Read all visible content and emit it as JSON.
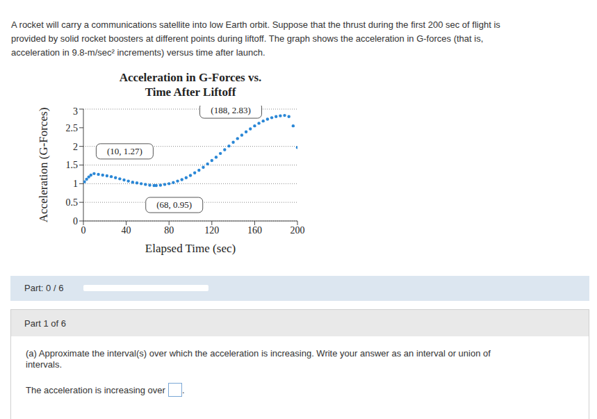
{
  "problem": {
    "lines": [
      "A rocket will carry a communications satellite into low Earth orbit. Suppose that the thrust during the first 200 sec of flight is",
      "provided by solid rocket boosters at different points during liftoff. The graph shows the acceleration in G-forces (that is,",
      "acceleration in 9.8-m/sec² increments) versus time after launch."
    ]
  },
  "chart_data": {
    "type": "scatter",
    "title": [
      "Acceleration in G-Forces vs.",
      "Time After Liftoff"
    ],
    "x_label": "Elapsed Time (sec)",
    "y_label": "Acceleration (G-Forces)",
    "x": [
      1,
      3,
      5,
      7,
      10,
      14,
      18,
      22,
      26,
      30,
      34,
      38,
      42,
      46,
      50,
      54,
      58,
      62,
      66,
      68,
      72,
      76,
      80,
      84,
      88,
      92,
      96,
      100,
      104,
      108,
      112,
      116,
      120,
      124,
      128,
      132,
      136,
      140,
      144,
      148,
      152,
      156,
      160,
      164,
      168,
      172,
      176,
      180,
      184,
      188,
      192,
      196,
      200
    ],
    "values": [
      1.05,
      1.12,
      1.18,
      1.23,
      1.27,
      1.25,
      1.23,
      1.21,
      1.19,
      1.16,
      1.13,
      1.1,
      1.07,
      1.04,
      1.02,
      1.0,
      0.98,
      0.96,
      0.95,
      0.95,
      0.96,
      0.98,
      1.0,
      1.03,
      1.07,
      1.11,
      1.16,
      1.22,
      1.29,
      1.36,
      1.44,
      1.53,
      1.62,
      1.71,
      1.81,
      1.91,
      2.01,
      2.11,
      2.21,
      2.3,
      2.39,
      2.47,
      2.55,
      2.62,
      2.68,
      2.73,
      2.77,
      2.8,
      2.82,
      2.83,
      2.8,
      2.55,
      1.97
    ],
    "color": "#2a87d6",
    "marker": "circle",
    "xlim": [
      0,
      200
    ],
    "xticks": [
      0,
      40,
      80,
      120,
      160,
      200
    ],
    "ylim": [
      0,
      3
    ],
    "yticks": [
      0,
      0.5,
      1,
      1.5,
      2,
      2.5,
      3
    ],
    "grid": true,
    "annotations": [
      {
        "text": "(10, 1.27)",
        "x": 10,
        "y": 1.27
      },
      {
        "text": "(68, 0.95)",
        "x": 68,
        "y": 0.95
      },
      {
        "text": "(188, 2.83)",
        "x": 188,
        "y": 2.83
      }
    ]
  },
  "progress": {
    "label": "Part: 0 / 6"
  },
  "part": {
    "header": "Part 1 of 6",
    "question_lines": [
      "(a) Approximate the interval(s) over which the acceleration is increasing. Write your answer as an interval or union of",
      "intervals."
    ],
    "answer_prefix": "The acceleration is increasing over",
    "answer_suffix": "."
  }
}
